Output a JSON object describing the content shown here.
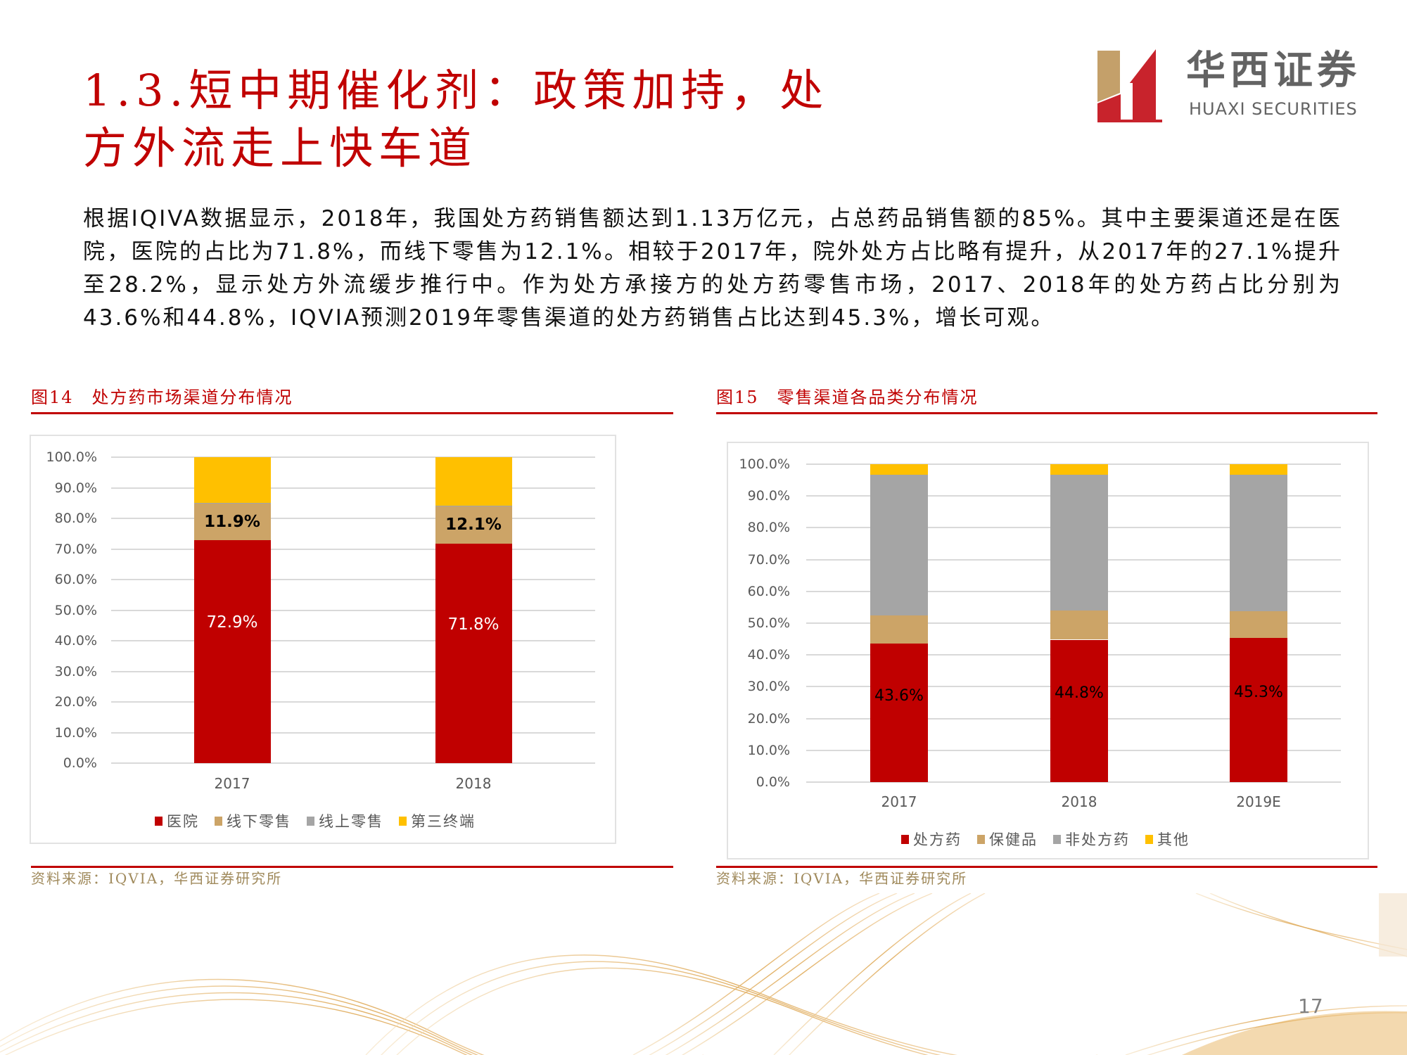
{
  "title": {
    "line1": "1.3.短中期催化剂：政策加持，处",
    "line2": "方外流走上快车道"
  },
  "logo": {
    "cn": "华西证券",
    "en": "HUAXI SECURITIES",
    "colors": {
      "gold": "#c4a06a",
      "red": "#c8232c",
      "text": "#636363"
    }
  },
  "body": {
    "paragraph": "根据IQIVA数据显示，2018年，我国处方药销售额达到1.13万亿元，占总药品销售额的85%。其中主要渠道还是在医院，医院的占比为71.8%，而线下零售为12.1%。相较于2017年，院外处方占比略有提升，从2017年的27.1%提升至28.2%，显示处方外流缓步推行中。作为处方承接方的处方药零售市场，2017、2018年的处方药占比分别为43.6%和44.8%，IQVIA预测2019年零售渠道的处方药销售占比达到45.3%，增长可观。"
  },
  "figures": [
    {
      "num": "图14",
      "title": "处方药市场渠道分布情况",
      "source": "资料来源：IQVIA，华西证券研究所"
    },
    {
      "num": "图15",
      "title": "零售渠道各品类分布情况",
      "source": "资料来源：IQVIA，华西证券研究所"
    }
  ],
  "chart_data": [
    {
      "type": "bar",
      "stacked": true,
      "title": "图14 处方药市场渠道分布情况",
      "categories": [
        "2017",
        "2018"
      ],
      "series": [
        {
          "name": "医院",
          "color": "#c00000",
          "values": [
            72.9,
            71.8
          ],
          "labels": [
            "72.9%",
            "71.8%"
          ]
        },
        {
          "name": "线下零售",
          "color": "#cca467",
          "values": [
            11.9,
            12.1
          ],
          "labels": [
            "11.9%",
            "12.1%"
          ]
        },
        {
          "name": "线上零售",
          "color": "#a5a5a5",
          "values": [
            0.2,
            0.3
          ],
          "labels": [
            "",
            ""
          ]
        },
        {
          "name": "第三终端",
          "color": "#ffc000",
          "values": [
            15.0,
            15.8
          ],
          "labels": [
            "",
            ""
          ]
        }
      ],
      "yticks": [
        "0.0%",
        "10.0%",
        "20.0%",
        "30.0%",
        "40.0%",
        "50.0%",
        "60.0%",
        "70.0%",
        "80.0%",
        "90.0%",
        "100.0%"
      ],
      "ylim": [
        0,
        100
      ],
      "xlabel": "",
      "ylabel": "",
      "grid": true,
      "legend_position": "bottom"
    },
    {
      "type": "bar",
      "stacked": true,
      "title": "图15 零售渠道各品类分布情况",
      "categories": [
        "2017",
        "2018",
        "2019E"
      ],
      "series": [
        {
          "name": "处方药",
          "color": "#c00000",
          "values": [
            43.6,
            44.8,
            45.3
          ],
          "labels": [
            "43.6%",
            "44.8%",
            "45.3%"
          ]
        },
        {
          "name": "保健品",
          "color": "#cca467",
          "values": [
            8.9,
            9.1,
            8.4
          ],
          "labels": [
            "",
            "",
            ""
          ]
        },
        {
          "name": "非处方药",
          "color": "#a5a5a5",
          "values": [
            44.2,
            42.8,
            43.0
          ],
          "labels": [
            "",
            "",
            ""
          ]
        },
        {
          "name": "其他",
          "color": "#ffc000",
          "values": [
            3.3,
            3.3,
            3.3
          ],
          "labels": [
            "",
            "",
            ""
          ]
        }
      ],
      "yticks": [
        "0.0%",
        "10.0%",
        "20.0%",
        "30.0%",
        "40.0%",
        "50.0%",
        "60.0%",
        "70.0%",
        "80.0%",
        "90.0%",
        "100.0%"
      ],
      "ylim": [
        0,
        100
      ],
      "xlabel": "",
      "ylabel": "",
      "grid": true,
      "legend_position": "bottom"
    }
  ],
  "page_number": "17",
  "colors": {
    "accent_red": "#c00000",
    "source_text": "#a08a5c",
    "wave": "#d9a44a"
  }
}
